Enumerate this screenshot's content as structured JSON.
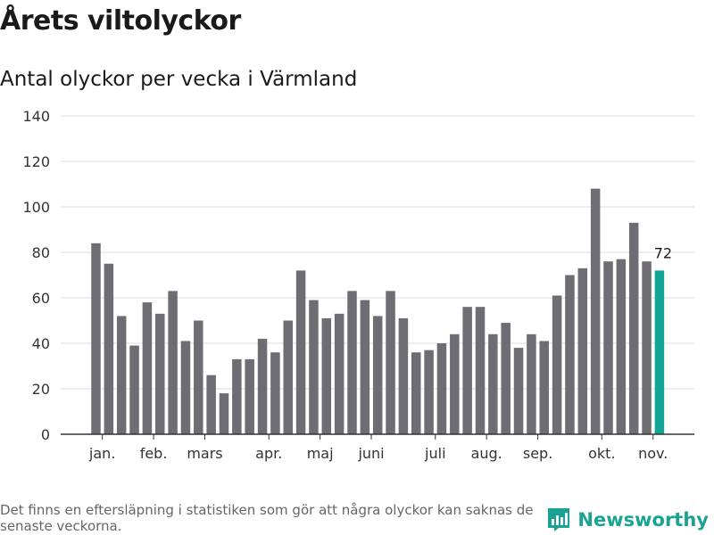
{
  "title": "Årets viltolyckor",
  "subtitle": "Antal olyckor per vecka i Värmland",
  "footnote": "Det finns en eftersläpning i statistiken som gör att några olyckor kan saknas de senaste veckorna.",
  "brand": {
    "name": "Newsworthy",
    "logo_icon": "bar-chart-flag-icon"
  },
  "colors": {
    "bar": "#6e6d73",
    "highlight": "#12a596",
    "grid": "#dddddd",
    "axis": "#333333"
  },
  "chart_data": {
    "type": "bar",
    "values": [
      84,
      75,
      52,
      39,
      58,
      53,
      63,
      41,
      50,
      26,
      18,
      33,
      33,
      42,
      36,
      50,
      72,
      59,
      51,
      53,
      63,
      59,
      52,
      63,
      51,
      36,
      37,
      40,
      44,
      56,
      56,
      44,
      49,
      38,
      44,
      41,
      61,
      70,
      73,
      108,
      76,
      77,
      93,
      76,
      72
    ],
    "highlight_index": 44,
    "highlight_label": "72",
    "ylim": [
      0,
      140
    ],
    "yticks": [
      0,
      20,
      40,
      60,
      80,
      100,
      120,
      140
    ],
    "xtick_labels": [
      {
        "label": "jan.",
        "at": 0.5
      },
      {
        "label": "feb.",
        "at": 4.5
      },
      {
        "label": "mars",
        "at": 8.5
      },
      {
        "label": "apr.",
        "at": 13.5
      },
      {
        "label": "maj",
        "at": 17.5
      },
      {
        "label": "juni",
        "at": 21.5
      },
      {
        "label": "juli",
        "at": 26.5
      },
      {
        "label": "aug.",
        "at": 30.5
      },
      {
        "label": "sep.",
        "at": 34.5
      },
      {
        "label": "okt.",
        "at": 39.5
      },
      {
        "label": "nov.",
        "at": 43.5
      }
    ],
    "grid": true,
    "legend": "none"
  }
}
